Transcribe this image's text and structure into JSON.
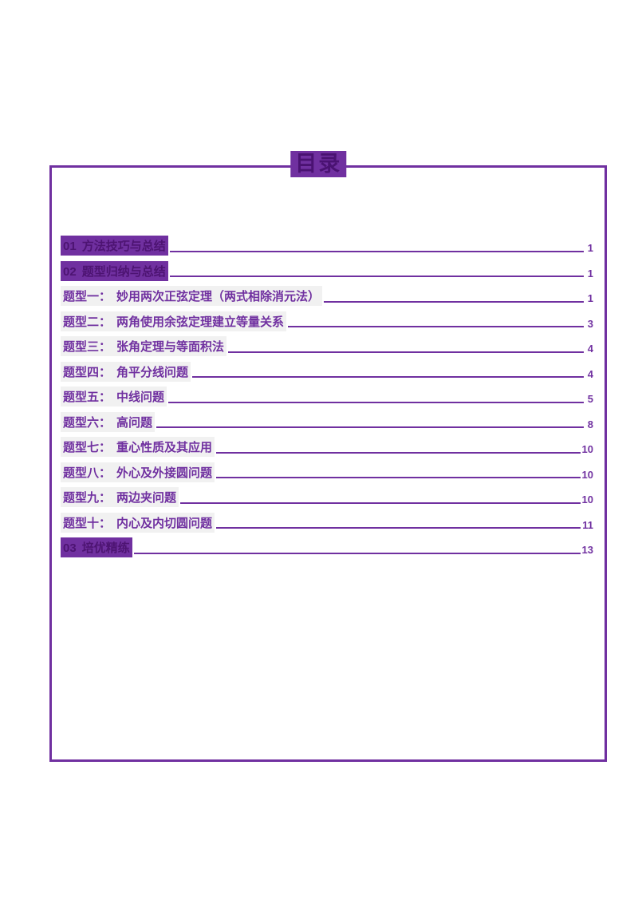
{
  "document": {
    "title": "目录",
    "accent_color": "#7030A0",
    "highlight_color": "#f1f1f1"
  },
  "toc": {
    "entries": [
      {
        "label": "01",
        "title": "方法技巧与总结",
        "page": "1",
        "style": "section"
      },
      {
        "label": "02",
        "title": "题型归纳与总结",
        "page": "1",
        "style": "section"
      },
      {
        "label": "题型一：",
        "title": "妙用两次正弦定理（两式相除消元法）",
        "page": "1",
        "style": "item"
      },
      {
        "label": "题型二：",
        "title": "两角使用余弦定理建立等量关系",
        "page": "3",
        "style": "item"
      },
      {
        "label": "题型三：",
        "title": "张角定理与等面积法",
        "page": "4",
        "style": "item"
      },
      {
        "label": "题型四：",
        "title": "角平分线问题",
        "page": "4",
        "style": "item"
      },
      {
        "label": "题型五：",
        "title": "中线问题",
        "page": "5",
        "style": "item"
      },
      {
        "label": "题型六：",
        "title": "高问题",
        "page": "8",
        "style": "item"
      },
      {
        "label": "题型七：",
        "title": "重心性质及其应用",
        "page": "10",
        "style": "item"
      },
      {
        "label": "题型八：",
        "title": "外心及外接圆问题",
        "page": "10",
        "style": "item"
      },
      {
        "label": "题型九：",
        "title": "两边夹问题",
        "page": "10",
        "style": "item"
      },
      {
        "label": "题型十：",
        "title": "内心及内切圆问题",
        "page": "11",
        "style": "item"
      },
      {
        "label": "03",
        "title": "培优精练",
        "page": "13",
        "style": "section"
      }
    ]
  }
}
